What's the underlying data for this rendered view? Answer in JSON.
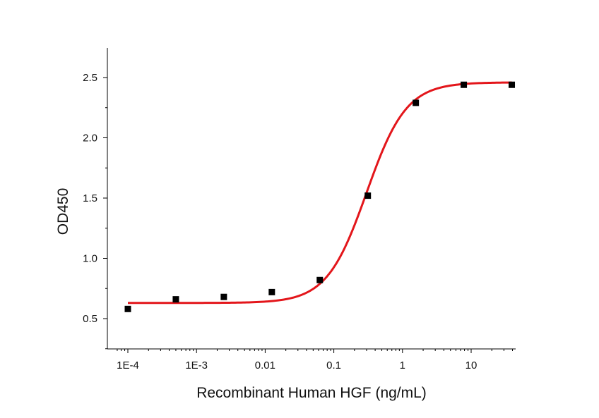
{
  "chart_data": {
    "type": "scatter",
    "xlabel": "Recombinant Human HGF (ng/mL)",
    "ylabel": "OD450",
    "x_scale": "log",
    "xlim": [
      7e-05,
      40
    ],
    "ylim": [
      0.25,
      2.75
    ],
    "x_ticks": [
      {
        "value": 0.0001,
        "label": "1E-4"
      },
      {
        "value": 0.001,
        "label": "1E-3"
      },
      {
        "value": 0.01,
        "label": "0.01"
      },
      {
        "value": 0.1,
        "label": "0.1"
      },
      {
        "value": 1,
        "label": "1"
      },
      {
        "value": 10,
        "label": "10"
      }
    ],
    "y_ticks": [
      {
        "value": 0.5,
        "label": "0.5"
      },
      {
        "value": 1.0,
        "label": "1.0"
      },
      {
        "value": 1.5,
        "label": "1.5"
      },
      {
        "value": 2.0,
        "label": "2.0"
      },
      {
        "value": 2.5,
        "label": "2.5"
      }
    ],
    "grid": false,
    "series": [
      {
        "marker": "square",
        "color": "#000000",
        "points": [
          {
            "x": 0.0001,
            "y": 0.58
          },
          {
            "x": 0.0005,
            "y": 0.66
          },
          {
            "x": 0.0025,
            "y": 0.68
          },
          {
            "x": 0.0125,
            "y": 0.72
          },
          {
            "x": 0.0625,
            "y": 0.82
          },
          {
            "x": 0.3125,
            "y": 1.52
          },
          {
            "x": 1.5625,
            "y": 2.29
          },
          {
            "x": 7.8125,
            "y": 2.44
          },
          {
            "x": 39.0625,
            "y": 2.44
          }
        ]
      }
    ],
    "fit_curve": {
      "model": "4PL",
      "color": "#e3161b",
      "bottom": 0.63,
      "top": 2.46,
      "ec50": 0.3,
      "hill": 1.5
    }
  }
}
